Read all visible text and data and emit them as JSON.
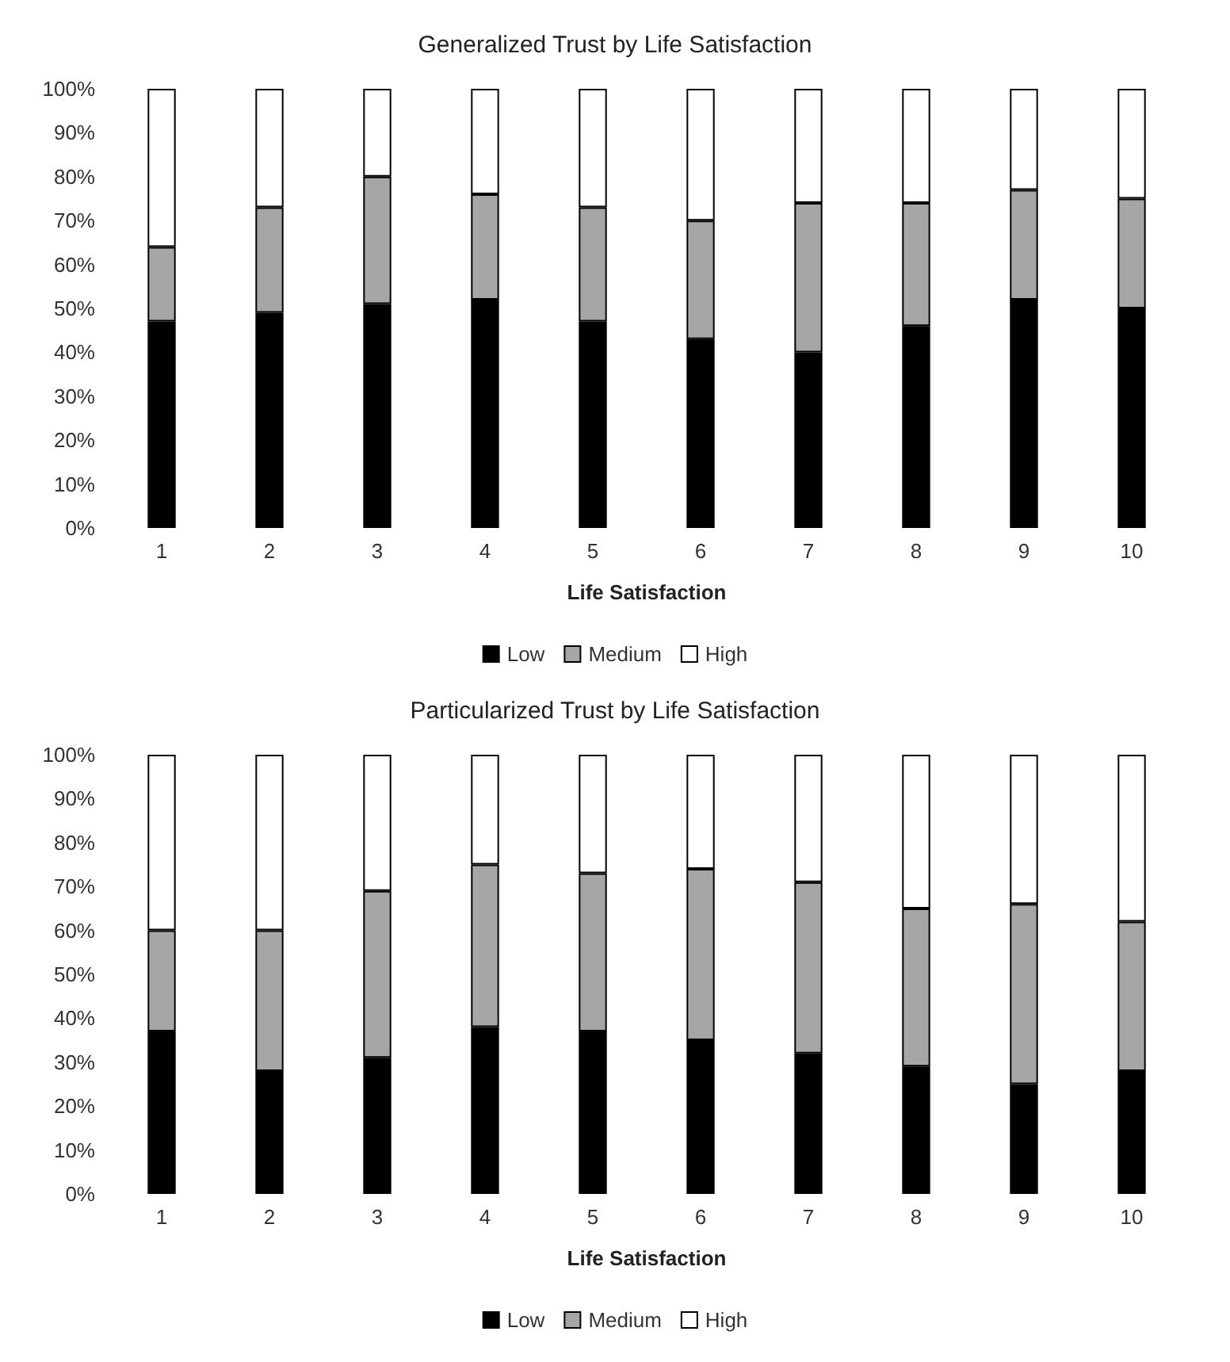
{
  "chart_data": [
    {
      "type": "bar",
      "title": "Generalized Trust by Life Satisfaction",
      "xlabel": "Life Satisfaction",
      "categories": [
        "1",
        "2",
        "3",
        "4",
        "5",
        "6",
        "7",
        "8",
        "9",
        "10"
      ],
      "stacked": true,
      "legend": "bottom",
      "ylim": [
        0,
        100
      ],
      "yticks": [
        {
          "value": 0,
          "label": "0%"
        },
        {
          "value": 10,
          "label": "10%"
        },
        {
          "value": 20,
          "label": "20%"
        },
        {
          "value": 30,
          "label": "30%"
        },
        {
          "value": 40,
          "label": "40%"
        },
        {
          "value": 50,
          "label": "50%"
        },
        {
          "value": 60,
          "label": "60%"
        },
        {
          "value": 70,
          "label": "70%"
        },
        {
          "value": 80,
          "label": "80%"
        },
        {
          "value": 90,
          "label": "90%"
        },
        {
          "value": 100,
          "label": "100%"
        }
      ],
      "series": [
        {
          "name": "Low",
          "color": "#000000",
          "values": [
            47,
            49,
            51,
            52,
            47,
            43,
            40,
            46,
            52,
            50
          ]
        },
        {
          "name": "Medium",
          "color": "#a6a6a6",
          "values": [
            17,
            24,
            29,
            24,
            26,
            27,
            34,
            28,
            25,
            25
          ]
        },
        {
          "name": "High",
          "color": "#ffffff",
          "values": [
            36,
            27,
            20,
            24,
            27,
            30,
            26,
            26,
            23,
            25
          ]
        }
      ]
    },
    {
      "type": "bar",
      "title": "Particularized Trust by Life Satisfaction",
      "xlabel": "Life Satisfaction",
      "categories": [
        "1",
        "2",
        "3",
        "4",
        "5",
        "6",
        "7",
        "8",
        "9",
        "10"
      ],
      "stacked": true,
      "legend": "bottom",
      "ylim": [
        0,
        100
      ],
      "yticks": [
        {
          "value": 0,
          "label": "0%"
        },
        {
          "value": 10,
          "label": "10%"
        },
        {
          "value": 20,
          "label": "20%"
        },
        {
          "value": 30,
          "label": "30%"
        },
        {
          "value": 40,
          "label": "40%"
        },
        {
          "value": 50,
          "label": "50%"
        },
        {
          "value": 60,
          "label": "60%"
        },
        {
          "value": 70,
          "label": "70%"
        },
        {
          "value": 80,
          "label": "80%"
        },
        {
          "value": 90,
          "label": "90%"
        },
        {
          "value": 100,
          "label": "100%"
        }
      ],
      "series": [
        {
          "name": "Low",
          "color": "#000000",
          "values": [
            37,
            28,
            31,
            38,
            37,
            35,
            32,
            29,
            25,
            28
          ]
        },
        {
          "name": "Medium",
          "color": "#a6a6a6",
          "values": [
            23,
            32,
            38,
            37,
            36,
            39,
            39,
            36,
            41,
            34
          ]
        },
        {
          "name": "High",
          "color": "#ffffff",
          "values": [
            40,
            40,
            31,
            25,
            27,
            26,
            29,
            35,
            34,
            38
          ]
        }
      ]
    }
  ]
}
